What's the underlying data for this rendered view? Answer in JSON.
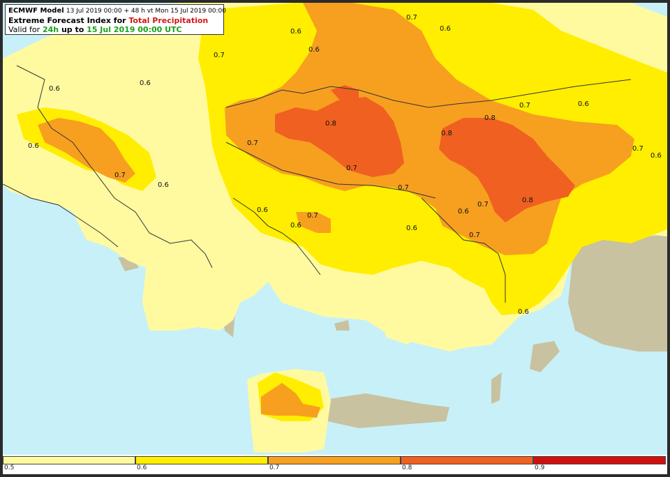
{
  "header": {
    "model": "ECMWF Model",
    "run_info": "13 Jul 2019 00:00 + 48 h vt Mon 15 Jul 2019 00:00",
    "index_label": "Extreme Forecast Index for",
    "parameter": "Total Precipitation",
    "valid_prefix": "Valid for",
    "period": "24h",
    "up_to": "up to",
    "valid_date": "15 Jul 2019 00:00 UTC"
  },
  "colors": {
    "sea": "#c8f0f8",
    "land": "#c8c2a0",
    "efi_0_5": "#fffaa0",
    "efi_0_6": "#ffee00",
    "efi_0_7": "#f7a020",
    "efi_0_8": "#f06020",
    "efi_0_9": "#d01010",
    "title_red": "#d01818",
    "title_green": "#18a018"
  },
  "legend": {
    "ticks": [
      "0.5",
      "0.6",
      "0.7",
      "0.8",
      "0.9"
    ]
  },
  "contour_labels": [
    "0.7",
    "0.6",
    "0.6",
    "0.7",
    "0.6",
    "0.6",
    "0.6",
    "0.7",
    "0.6",
    "0.8",
    "0.7",
    "0.8",
    "0.8",
    "0.7",
    "0.6",
    "0.7",
    "0.6",
    "0.7",
    "0.6",
    "0.6",
    "0.7",
    "0.6",
    "0.7",
    "0.8",
    "0.7",
    "0.6",
    "0.6",
    "0.7",
    "0.6"
  ]
}
